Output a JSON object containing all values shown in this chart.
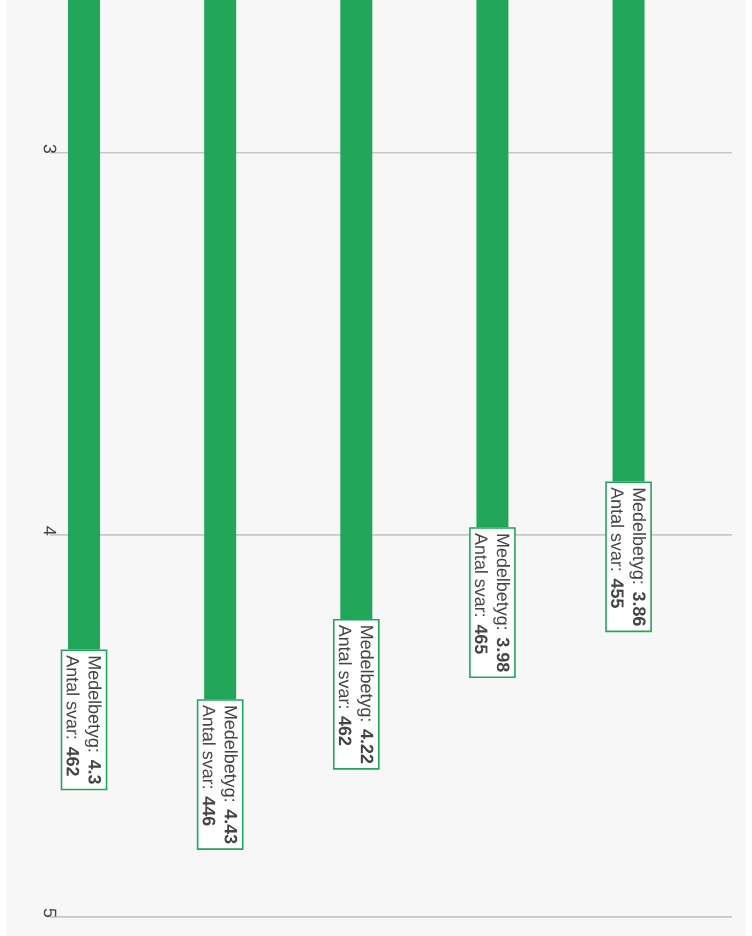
{
  "chart_data": {
    "type": "bar",
    "categories": [
      null,
      null,
      null,
      null,
      null
    ],
    "values": [
      4.3,
      4.43,
      4.22,
      3.98,
      3.86
    ],
    "color": "#21a65a",
    "ylim": [
      5.05,
      2.6
    ],
    "yticks": [
      3,
      4,
      5
    ],
    "grid": "y",
    "value_labels": [
      "Medelbetyg: **4.3**",
      "Medelbetyg: **4.43**",
      "Medelbetyg: **4.22**",
      "Medelbetyg: **3.98**",
      "Medelbetyg: **3.86**"
    ],
    "annotations": [
      "Antal svar: **462**",
      "Antal svar: **446**",
      "Antal svar: **462**",
      "Antal svar: **465**",
      "Antal svar: **455**"
    ]
  }
}
